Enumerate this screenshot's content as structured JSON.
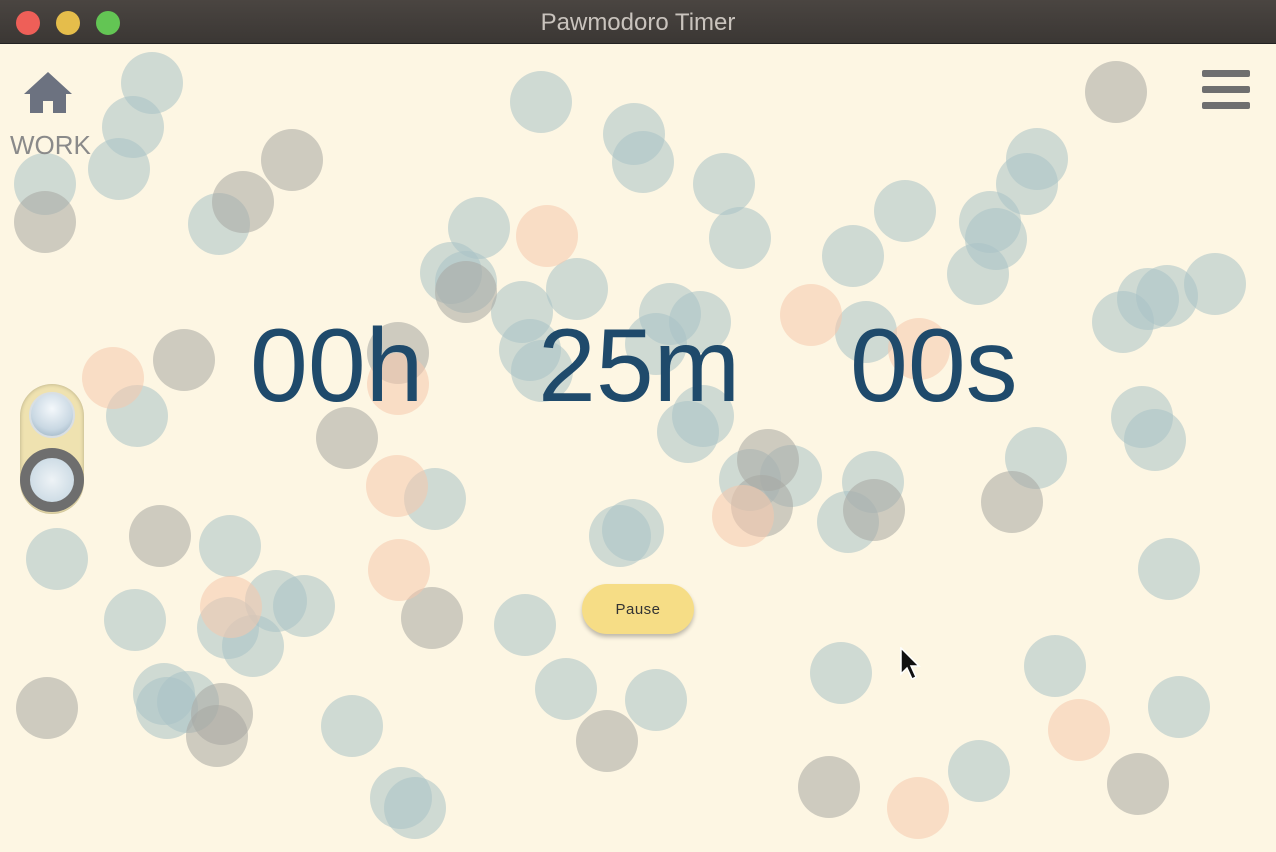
{
  "window": {
    "title": "Pawmodoro Timer",
    "traffic_lights": [
      "close",
      "minimize",
      "maximize"
    ]
  },
  "header": {
    "home_icon": "home-icon",
    "mode_label": "WORK",
    "menu_icon": "hamburger-menu-icon"
  },
  "timer": {
    "hours": "00h",
    "minutes": "25m",
    "seconds": "00s"
  },
  "controls": {
    "pause_label": "Pause"
  },
  "colors": {
    "background": "#fdf6e3",
    "timer_text": "#1f4a6b",
    "pause_button": "#f6dd86",
    "bubble_teal": "#a9c3c6",
    "bubble_gray": "#a8a8a3",
    "bubble_peach": "#f5c8ad"
  }
}
